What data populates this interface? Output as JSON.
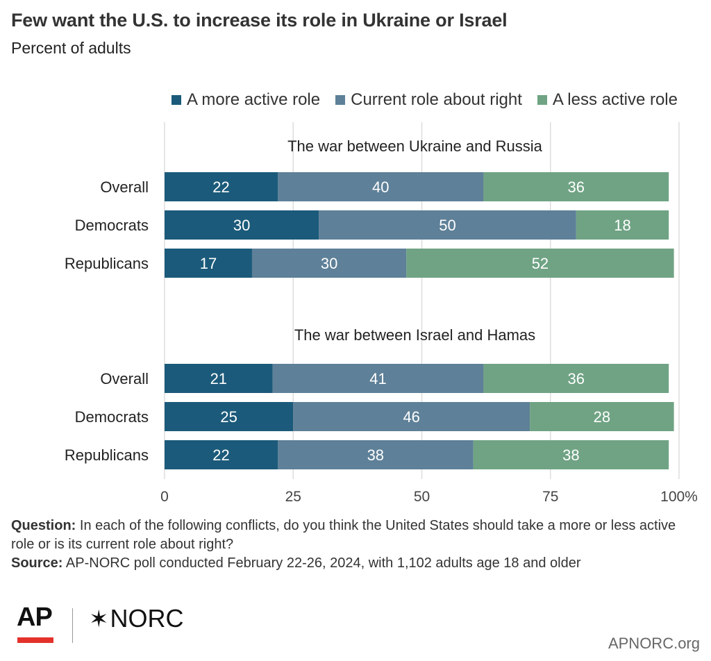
{
  "header": {
    "title": "Few want the U.S. to increase its role in Ukraine or Israel",
    "subtitle": "Percent of adults"
  },
  "legend": {
    "items": [
      {
        "label": "A more active role",
        "color": "#1b5a7a"
      },
      {
        "label": "Current role about right",
        "color": "#5e8098"
      },
      {
        "label": "A less active role",
        "color": "#6fa384"
      }
    ]
  },
  "chart_data": {
    "type": "bar",
    "orientation": "horizontal",
    "stacked": true,
    "xlim": [
      0,
      100
    ],
    "x_ticks": [
      "0",
      "25",
      "50",
      "75",
      "100"
    ],
    "x_unit": "%",
    "grid": true,
    "legend_position": "top-right",
    "series_names": [
      "A more active role",
      "Current role about right",
      "A less active role"
    ],
    "colors": [
      "#1b5a7a",
      "#5e8098",
      "#6fa384"
    ],
    "panels": [
      {
        "title": "The war between Ukraine and Russia",
        "categories": [
          "Overall",
          "Democrats",
          "Republicans"
        ],
        "values": [
          [
            22,
            40,
            36
          ],
          [
            30,
            50,
            18
          ],
          [
            17,
            30,
            52
          ]
        ]
      },
      {
        "title": "The war between Israel and Hamas",
        "categories": [
          "Overall",
          "Democrats",
          "Republicans"
        ],
        "values": [
          [
            21,
            41,
            36
          ],
          [
            25,
            46,
            28
          ],
          [
            22,
            38,
            38
          ]
        ]
      }
    ]
  },
  "notes": {
    "question_label": "Question:",
    "question_text": "In each of the following conflicts, do you think the United States should take a more or less active role or is its current role about right?",
    "source_label": "Source:",
    "source_text": "AP-NORC poll conducted February 22-26, 2024, with 1,102 adults age 18 and older"
  },
  "footer": {
    "ap_logo_text": "AP",
    "norc_star": "✶",
    "norc_logo_text": "NORC",
    "site": "APNORC.org"
  }
}
